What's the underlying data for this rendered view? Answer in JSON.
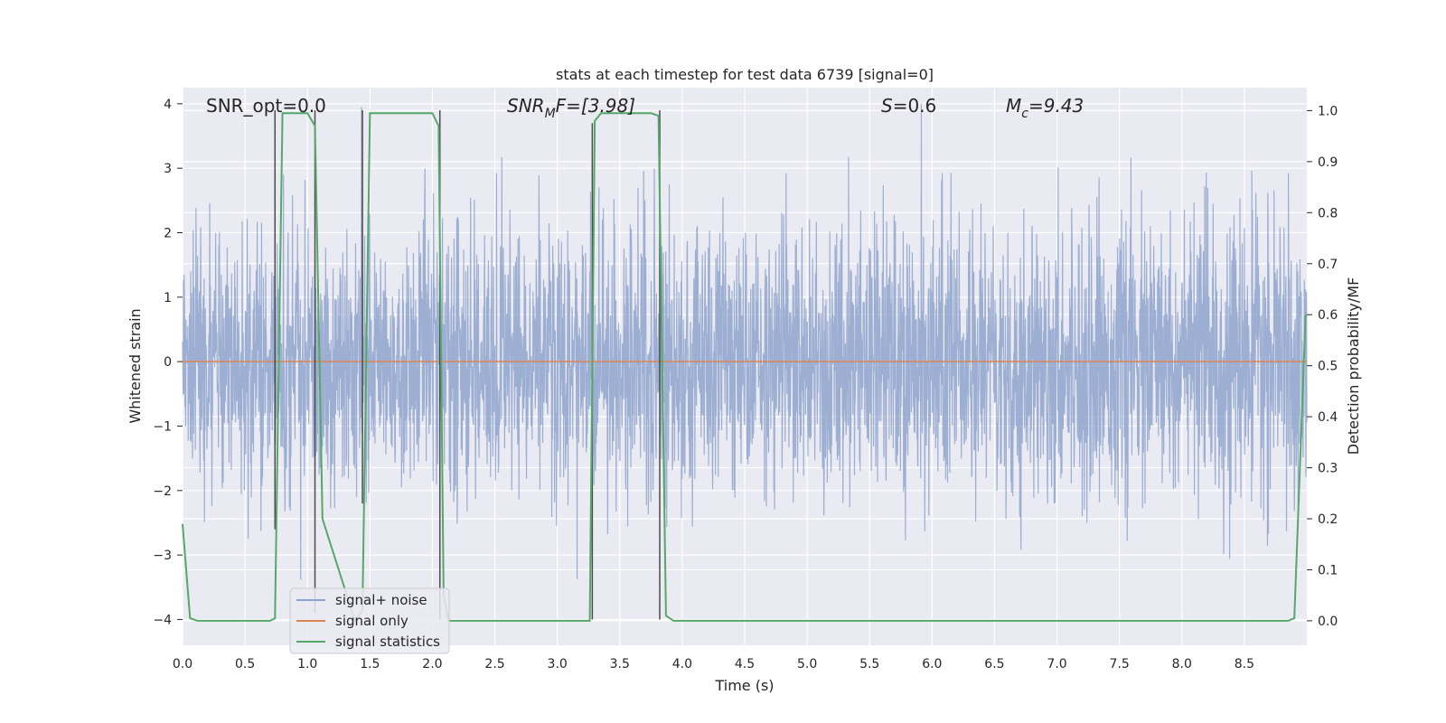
{
  "chart_data": {
    "type": "line",
    "title": "stats at each timestep for test data 6739 [signal=0]",
    "xlabel": "Time (s)",
    "ylabel": "Whitened strain",
    "y2label": "Detection probability/MF",
    "xlim": [
      0.0,
      9.0
    ],
    "ylim": [
      -4.4,
      4.25
    ],
    "y2lim": [
      -0.048,
      1.045
    ],
    "xticks": [
      "0.0",
      "0.5",
      "1.0",
      "1.5",
      "2.0",
      "2.5",
      "3.0",
      "3.5",
      "4.0",
      "4.5",
      "5.0",
      "5.5",
      "6.0",
      "6.5",
      "7.0",
      "7.5",
      "8.0",
      "8.5"
    ],
    "yticks": [
      "-4",
      "-3",
      "-2",
      "-1",
      "0",
      "1",
      "2",
      "3",
      "4"
    ],
    "y2ticks": [
      "0.0",
      "0.1",
      "0.2",
      "0.3",
      "0.4",
      "0.5",
      "0.6",
      "0.7",
      "0.8",
      "0.9",
      "1.0"
    ],
    "grid": true,
    "legend_position": "lower-left",
    "annotations": [
      {
        "pre": "SNR_opt=0.0",
        "sub": "",
        "post": "",
        "italic": false
      },
      {
        "pre": "SNR",
        "sub": "M",
        "post": "F=[3.98]",
        "italic": true
      },
      {
        "pre": "S",
        "sub": "",
        "post": "=0.6",
        "italic": true
      },
      {
        "pre": "M",
        "sub": "c",
        "post": "=9.43",
        "italic": true
      }
    ],
    "series": [
      {
        "name": "signal+ noise",
        "color": "#8ea3cc",
        "axis": "left",
        "style": "noise",
        "envelope": [
          -2.0,
          2.0
        ],
        "extremes": [
          -4.0,
          4.0
        ]
      },
      {
        "name": "signal only",
        "color": "#dd8452",
        "axis": "left",
        "x": [
          0.0,
          9.0
        ],
        "y": [
          0.0,
          0.0
        ]
      },
      {
        "name": "signal statistics",
        "color": "#55a868",
        "axis": "right",
        "x": [
          0.0,
          0.06,
          0.12,
          0.7,
          0.74,
          0.8,
          1.0,
          1.06,
          1.12,
          1.38,
          1.44,
          1.5,
          2.0,
          2.05,
          2.09,
          2.13,
          2.3,
          3.26,
          3.3,
          3.35,
          3.75,
          3.81,
          3.87,
          3.93,
          8.85,
          8.9,
          8.99
        ],
        "y": [
          0.19,
          0.005,
          0.0,
          0.0,
          0.005,
          0.995,
          0.995,
          0.97,
          0.2,
          0.0,
          0.02,
          0.995,
          0.995,
          0.97,
          0.05,
          0.0,
          0.0,
          0.0,
          0.98,
          0.995,
          0.995,
          0.99,
          0.01,
          0.0,
          0.0,
          0.005,
          0.6
        ]
      },
      {
        "name": "",
        "color": "#4c4c4c",
        "axis": "left",
        "style": "vlines",
        "x": [
          0.74,
          1.06,
          1.44,
          2.06,
          3.28,
          3.82
        ],
        "y": [
          [
            -2.6,
            3.9
          ],
          [
            -3.9,
            3.9
          ],
          [
            -2.2,
            3.9
          ],
          [
            -4.0,
            3.9
          ],
          [
            -4.0,
            3.7
          ],
          [
            -4.0,
            3.9
          ]
        ]
      }
    ]
  },
  "legend": {
    "items": [
      {
        "label": "signal+ noise",
        "color": "#8ea3cc"
      },
      {
        "label": "signal only",
        "color": "#dd8452"
      },
      {
        "label": "signal statistics",
        "color": "#55a868"
      }
    ]
  }
}
